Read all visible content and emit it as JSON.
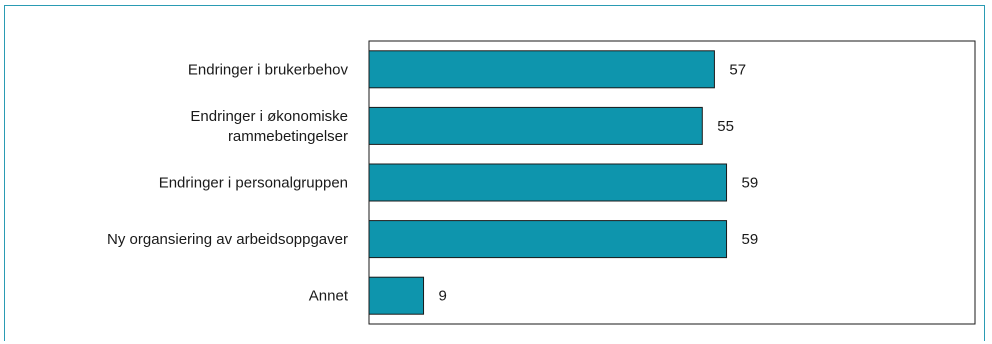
{
  "chart_data": {
    "type": "bar",
    "orientation": "horizontal",
    "categories": [
      [
        "Endringer i brukerbehov"
      ],
      [
        "Endringer i økonomiske",
        "rammebetingelser"
      ],
      [
        "Endringer i personalgruppen"
      ],
      [
        "Ny organsiering av arbeidsoppgaver"
      ],
      [
        "Annet"
      ]
    ],
    "values": [
      57,
      55,
      59,
      59,
      9
    ],
    "data_labels": [
      "57",
      "55",
      "59",
      "59",
      "9"
    ],
    "xlim": [
      0,
      100
    ],
    "grid": false,
    "legend": "none",
    "colors": {
      "bar": "#0e95ad",
      "bar_stroke": "#1a1a1a",
      "frame": "#2a9bb3",
      "plot_border": "#1a1a1a"
    }
  }
}
